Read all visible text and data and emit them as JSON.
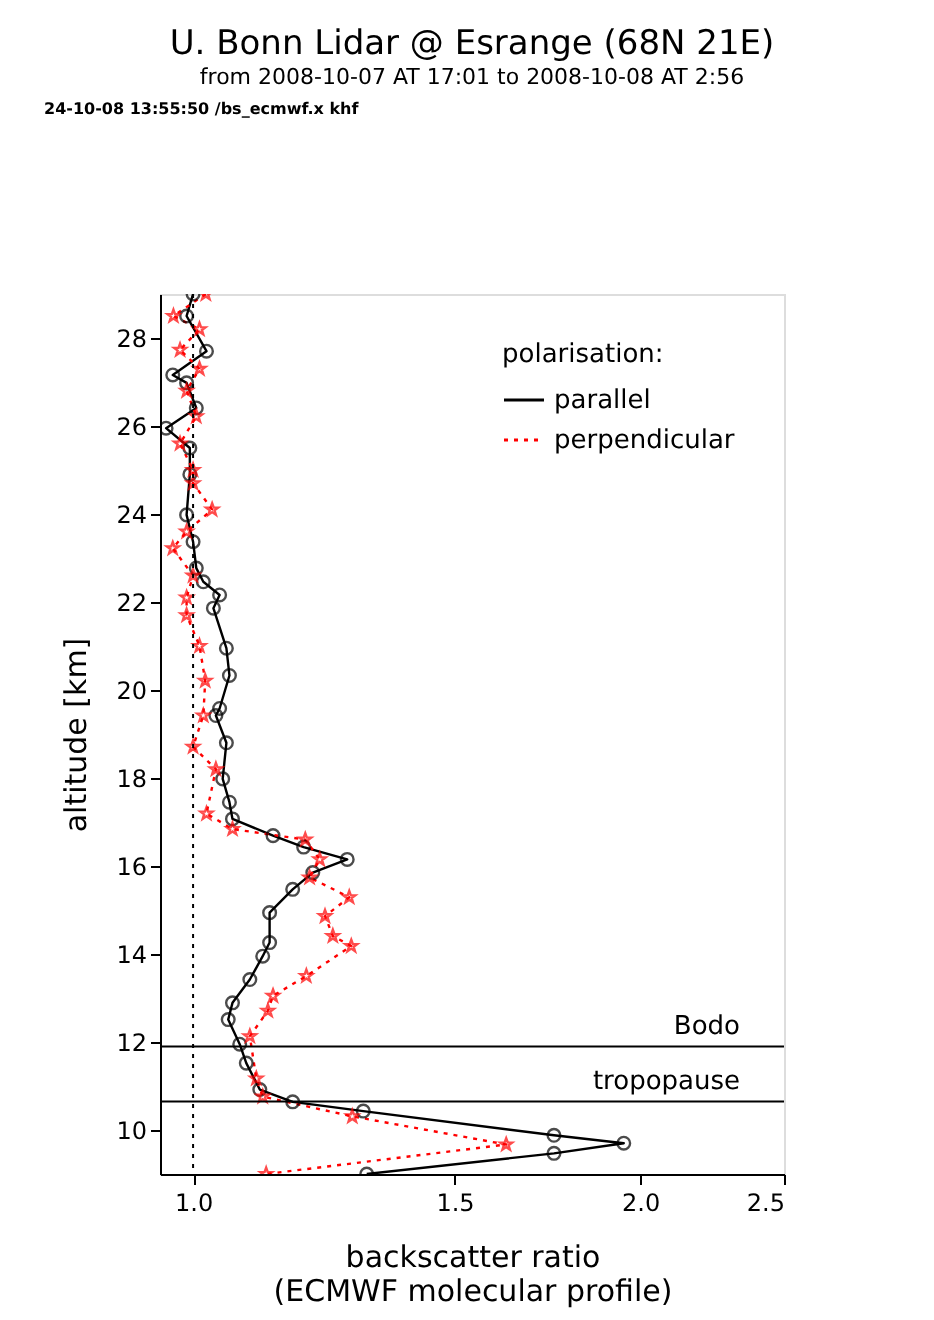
{
  "chart_data": {
    "type": "line",
    "orientation": "horizontal",
    "title": "U. Bonn Lidar @ Esrange (68N 21E)",
    "subtitle": "from  2008-10-07 AT  17:01   to  2008-10-08 AT   2:56",
    "xlabel": "backscatter ratio\n(ECMWF molecular profile)",
    "ylabel": "altitude [km]",
    "legend_title": "polarisation:",
    "legend": "top right",
    "log": "x",
    "grid": false,
    "annotations": [
      "24-10-08 13:55:50 /bs_ecmwf.x  khf"
    ],
    "xlim": [
      0.95,
      2.5
    ],
    "xticks": [
      {
        "value": 1,
        "label": "1.0"
      },
      {
        "value": 1.5,
        "label": "1.5"
      },
      {
        "value": 2,
        "label": "2.0"
      },
      {
        "value": 2.5,
        "label": "2.5"
      }
    ],
    "ylim": [
      9,
      29
    ],
    "yticks": [
      10,
      12,
      14,
      16,
      18,
      20,
      22,
      24,
      26,
      28
    ],
    "ref_lines": [
      {
        "axis": "x",
        "value": 1.0,
        "label": null,
        "line_style": "dotted",
        "color": "#000000"
      },
      {
        "axis": "y",
        "value": 11.9,
        "label": "Bodo",
        "color": "#000000"
      },
      {
        "axis": "y",
        "value": 10.65,
        "label": "tropopause",
        "color": "#000000"
      }
    ],
    "series": [
      {
        "name": "parallel",
        "color": "#000000",
        "line_style": "solid",
        "marker": "circle",
        "x": [
          29.0,
          28.5,
          27.7,
          27.16,
          26.98,
          26.41,
          25.95,
          25.5,
          24.9,
          23.98,
          23.37,
          22.77,
          22.46,
          22.16,
          21.86,
          20.95,
          20.33,
          19.58,
          19.42,
          18.8,
          17.98,
          17.45,
          17.07,
          16.69,
          16.43,
          16.15,
          15.85,
          15.47,
          14.94,
          14.26,
          13.95,
          13.42,
          12.89,
          12.51,
          11.95,
          11.52,
          10.92,
          10.64,
          10.43,
          9.88,
          9.7,
          9.47,
          9.0
        ],
        "values": [
          1.0,
          0.99,
          1.021,
          0.969,
          0.99,
          1.005,
          0.959,
          0.995,
          0.995,
          0.99,
          1.0,
          1.005,
          1.016,
          1.042,
          1.032,
          1.053,
          1.058,
          1.042,
          1.036,
          1.053,
          1.047,
          1.058,
          1.063,
          1.132,
          1.187,
          1.27,
          1.204,
          1.167,
          1.126,
          1.126,
          1.114,
          1.092,
          1.063,
          1.056,
          1.075,
          1.086,
          1.109,
          1.167,
          1.302,
          1.75,
          1.95,
          1.75,
          1.309
        ]
      },
      {
        "name": "perpendicular",
        "color": "#ff0000",
        "line_style": "dotted",
        "marker": "star",
        "x": [
          29.0,
          28.5,
          28.2,
          27.73,
          27.3,
          26.8,
          26.22,
          25.6,
          25.0,
          24.7,
          24.1,
          23.6,
          23.22,
          22.6,
          22.1,
          21.7,
          21.0,
          20.21,
          19.42,
          18.71,
          18.2,
          17.19,
          16.84,
          16.6,
          16.15,
          15.74,
          15.29,
          14.86,
          14.41,
          14.18,
          13.5,
          13.05,
          12.71,
          12.13,
          11.17,
          10.76,
          10.31,
          9.67,
          9.0
        ],
        "values": [
          1.02,
          0.97,
          1.01,
          0.98,
          1.01,
          0.99,
          1.005,
          0.98,
          1.0,
          1.0,
          1.03,
          0.99,
          0.969,
          1.0,
          0.99,
          0.99,
          1.01,
          1.019,
          1.016,
          1.0,
          1.036,
          1.021,
          1.063,
          1.19,
          1.217,
          1.198,
          1.274,
          1.227,
          1.242,
          1.278,
          1.192,
          1.132,
          1.123,
          1.092,
          1.103,
          1.114,
          1.28,
          1.625,
          1.12
        ]
      }
    ]
  }
}
